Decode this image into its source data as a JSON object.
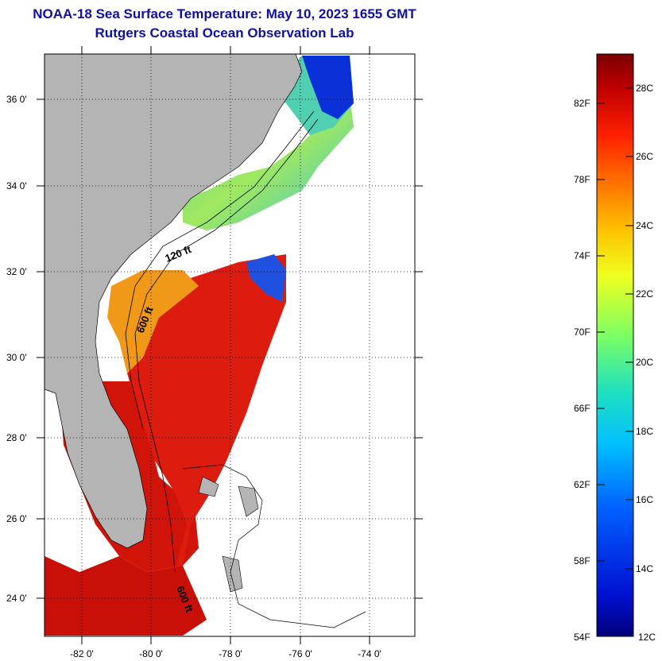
{
  "title": "NOAA-18 Sea Surface Temperature:  May 10, 2023 1655 GMT",
  "subtitle": "Rutgers Coastal Ocean Observation Lab",
  "map": {
    "lon_ticks": [
      "-82 0'",
      "-80 0'",
      "-78 0'",
      "-76 0'",
      "-74 0'"
    ],
    "lat_ticks": [
      "36 0'",
      "34 0'",
      "32 0'",
      "30 0'",
      "28 0'",
      "26 0'",
      "24 0'"
    ],
    "contour_labels": [
      "120 ft",
      "600 ft",
      "600 ft"
    ],
    "colors": {
      "land": "#b4b4b4",
      "warm_water": "#e01e10",
      "gulf_stream": "#d40c06",
      "cool_water": "#30c8b0",
      "cold_water": "#0a24d0"
    }
  },
  "colorbar": {
    "fahrenheit_labels": [
      "82F",
      "78F",
      "74F",
      "70F",
      "66F",
      "62F",
      "58F",
      "54F"
    ],
    "celsius_labels": [
      "28C",
      "26C",
      "24C",
      "22C",
      "20C",
      "18C",
      "16C",
      "14C",
      "12C"
    ],
    "gradient_stops": [
      "#7a0000",
      "#c00000",
      "#ff2000",
      "#ff7000",
      "#ffc000",
      "#f0ff20",
      "#80ff60",
      "#20e0c0",
      "#00c0ff",
      "#0060ff",
      "#0010d0",
      "#00007a"
    ]
  }
}
